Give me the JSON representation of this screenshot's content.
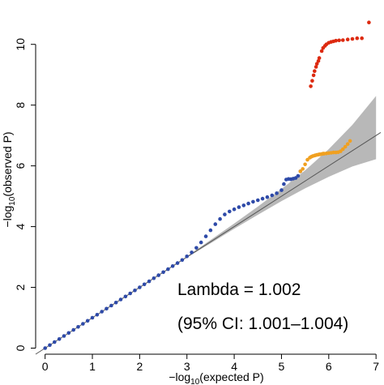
{
  "chart_data": {
    "type": "scatter",
    "title": "",
    "xlabel": {
      "prefix": "−log",
      "sub": "10",
      "suffix": "(expected P)"
    },
    "ylabel": {
      "prefix": "−log",
      "sub": "10",
      "suffix": "(observed P)"
    },
    "xlim": [
      -0.2,
      7.1
    ],
    "ylim": [
      -0.2,
      11.3
    ],
    "x_ticks": [
      0,
      1,
      2,
      3,
      4,
      5,
      6,
      7
    ],
    "y_ticks": [
      0,
      2,
      4,
      6,
      8,
      10
    ],
    "grid": false,
    "reference_line": {
      "x": [
        -0.2,
        7.1
      ],
      "y": [
        -0.2,
        7.1
      ],
      "color": "#555555"
    },
    "confidence_band": {
      "color": "#b8b8b8",
      "x": [
        3.0,
        3.5,
        4.0,
        4.5,
        5.0,
        5.5,
        6.0,
        6.5,
        7.0
      ],
      "lower": [
        2.98,
        3.45,
        3.93,
        4.39,
        4.84,
        5.26,
        5.64,
        5.98,
        6.22
      ],
      "upper": [
        3.02,
        3.56,
        4.1,
        4.66,
        5.24,
        5.85,
        6.55,
        7.35,
        8.3
      ]
    },
    "series": [
      {
        "color": "#2e4aa8",
        "x": [
          0.0,
          0.1,
          0.2,
          0.3,
          0.4,
          0.5,
          0.6,
          0.7,
          0.8,
          0.9,
          1.0,
          1.1,
          1.2,
          1.3,
          1.4,
          1.5,
          1.6,
          1.7,
          1.8,
          1.9,
          2.0,
          2.1,
          2.2,
          2.3,
          2.4,
          2.5,
          2.6,
          2.7,
          2.8,
          2.9,
          3.0,
          3.1,
          3.2,
          3.3,
          3.4,
          3.5,
          3.6,
          3.7,
          3.8,
          3.9,
          4.0,
          4.1,
          4.2,
          4.3,
          4.4,
          4.5,
          4.6,
          4.7,
          4.8,
          4.9,
          5.0,
          5.05,
          5.1,
          5.15,
          5.2,
          5.25,
          5.3,
          5.35,
          5.4
        ],
        "y": [
          0.0,
          0.1,
          0.2,
          0.3,
          0.4,
          0.5,
          0.6,
          0.7,
          0.8,
          0.9,
          1.0,
          1.1,
          1.2,
          1.3,
          1.4,
          1.5,
          1.6,
          1.7,
          1.8,
          1.9,
          2.0,
          2.1,
          2.2,
          2.3,
          2.4,
          2.5,
          2.6,
          2.7,
          2.8,
          2.9,
          3.02,
          3.15,
          3.3,
          3.48,
          3.68,
          3.88,
          4.08,
          4.25,
          4.4,
          4.5,
          4.57,
          4.64,
          4.7,
          4.76,
          4.82,
          4.87,
          4.92,
          4.97,
          5.03,
          5.1,
          5.2,
          5.4,
          5.55,
          5.57,
          5.56,
          5.58,
          5.6,
          5.67,
          5.82
        ]
      },
      {
        "color": "#f0a020",
        "x": [
          5.4,
          5.45,
          5.5,
          5.55,
          5.6,
          5.63,
          5.66,
          5.7,
          5.72,
          5.75,
          5.78,
          5.8,
          5.82,
          5.85,
          5.88,
          5.9,
          5.95,
          6.0,
          6.05,
          6.1,
          6.15,
          6.2,
          6.25,
          6.3,
          6.35,
          6.4,
          6.45
        ],
        "y": [
          5.82,
          5.9,
          6.05,
          6.2,
          6.27,
          6.3,
          6.32,
          6.34,
          6.35,
          6.36,
          6.37,
          6.38,
          6.38,
          6.39,
          6.4,
          6.4,
          6.41,
          6.42,
          6.43,
          6.44,
          6.44,
          6.45,
          6.48,
          6.55,
          6.63,
          6.72,
          6.82
        ]
      },
      {
        "color": "#dd2a10",
        "x": [
          5.62,
          5.65,
          5.68,
          5.7,
          5.73,
          5.75,
          5.78,
          5.8,
          5.85,
          5.88,
          5.92,
          5.95,
          6.0,
          6.05,
          6.1,
          6.15,
          6.22,
          6.3,
          6.4,
          6.5,
          6.6,
          6.7,
          6.85
        ],
        "y": [
          8.62,
          8.8,
          8.98,
          9.12,
          9.26,
          9.36,
          9.45,
          9.55,
          9.78,
          9.88,
          9.95,
          10.0,
          10.05,
          10.08,
          10.1,
          10.12,
          10.13,
          10.14,
          10.16,
          10.18,
          10.2,
          10.2,
          10.72
        ]
      }
    ],
    "annotations": {
      "lambda": "Lambda = 1.002",
      "ci": "(95% CI: 1.001–1.004)"
    }
  }
}
